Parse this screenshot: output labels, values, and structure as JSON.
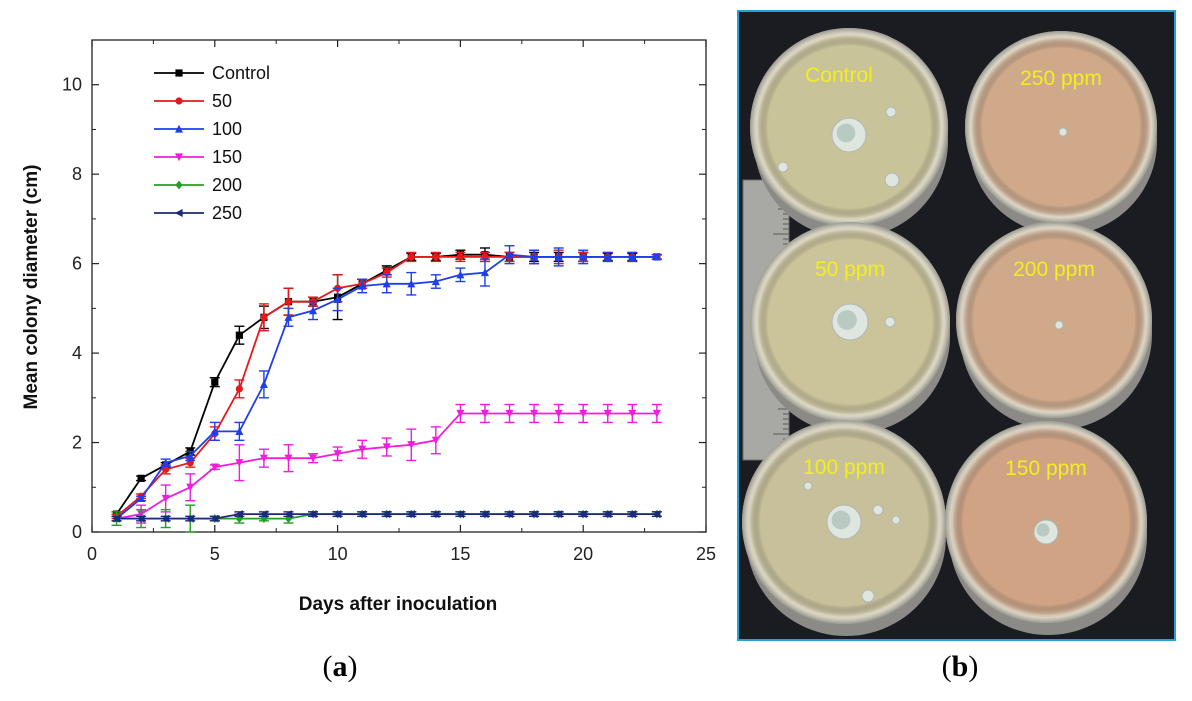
{
  "chart_data": {
    "type": "line",
    "title": "",
    "xlabel": "Days after inoculation",
    "ylabel": "Mean colony diameter (cm)",
    "xlim": [
      0,
      25
    ],
    "ylim": [
      0,
      11
    ],
    "xticks": [
      0,
      5,
      10,
      15,
      20,
      25
    ],
    "yticks": [
      0,
      2,
      4,
      6,
      8,
      10
    ],
    "grid": false,
    "legend_position": "top-left",
    "x": [
      1,
      2,
      3,
      4,
      5,
      6,
      7,
      8,
      9,
      10,
      11,
      12,
      13,
      14,
      15,
      16,
      17,
      18,
      19,
      20,
      21,
      22,
      23
    ],
    "series": [
      {
        "name": "Control",
        "color": "#000000",
        "marker": "square",
        "values": [
          0.4,
          1.2,
          1.5,
          1.8,
          3.35,
          4.4,
          4.8,
          5.15,
          5.15,
          5.25,
          5.55,
          5.85,
          6.15,
          6.15,
          6.2,
          6.2,
          6.15,
          6.15,
          6.15,
          6.15,
          6.15,
          6.15,
          6.15
        ],
        "errors": [
          0.05,
          0.05,
          0.05,
          0.08,
          0.1,
          0.2,
          0.25,
          0.3,
          0.1,
          0.5,
          0.1,
          0.1,
          0.08,
          0.08,
          0.1,
          0.15,
          0.1,
          0.1,
          0.1,
          0.1,
          0.08,
          0.08,
          0.05
        ]
      },
      {
        "name": "50",
        "color": "#e41a1c",
        "marker": "circle",
        "values": [
          0.35,
          0.8,
          1.4,
          1.55,
          2.2,
          3.2,
          4.8,
          5.15,
          5.15,
          5.45,
          5.55,
          5.8,
          6.15,
          6.15,
          6.15,
          6.15,
          6.15,
          6.15,
          6.15,
          6.15,
          6.15,
          6.15,
          6.15
        ],
        "errors": [
          0.05,
          0.05,
          0.1,
          0.1,
          0.15,
          0.2,
          0.3,
          0.3,
          0.1,
          0.3,
          0.1,
          0.1,
          0.1,
          0.1,
          0.1,
          0.1,
          0.1,
          0.15,
          0.15,
          0.1,
          0.1,
          0.1,
          0.05
        ]
      },
      {
        "name": "100",
        "color": "#1f3fe8",
        "marker": "triangle-up",
        "values": [
          0.3,
          0.75,
          1.55,
          1.7,
          2.25,
          2.25,
          3.3,
          4.8,
          4.95,
          5.2,
          5.5,
          5.55,
          5.55,
          5.6,
          5.75,
          5.8,
          6.2,
          6.15,
          6.15,
          6.15,
          6.15,
          6.15,
          6.15
        ],
        "errors": [
          0.05,
          0.05,
          0.08,
          0.1,
          0.2,
          0.2,
          0.3,
          0.2,
          0.2,
          0.25,
          0.15,
          0.2,
          0.25,
          0.15,
          0.15,
          0.3,
          0.2,
          0.15,
          0.2,
          0.15,
          0.1,
          0.1,
          0.05
        ]
      },
      {
        "name": "150",
        "color": "#f01de0",
        "marker": "triangle-down",
        "values": [
          0.3,
          0.4,
          0.75,
          1.0,
          1.45,
          1.55,
          1.65,
          1.65,
          1.65,
          1.75,
          1.85,
          1.9,
          1.95,
          2.05,
          2.65,
          2.65,
          2.65,
          2.65,
          2.65,
          2.65,
          2.65,
          2.65,
          2.65
        ],
        "errors": [
          0.05,
          0.2,
          0.3,
          0.3,
          0.05,
          0.4,
          0.2,
          0.3,
          0.1,
          0.15,
          0.2,
          0.2,
          0.35,
          0.3,
          0.2,
          0.2,
          0.2,
          0.2,
          0.2,
          0.2,
          0.2,
          0.2,
          0.2
        ]
      },
      {
        "name": "200",
        "color": "#23a023",
        "marker": "diamond",
        "values": [
          0.3,
          0.3,
          0.3,
          0.3,
          0.3,
          0.3,
          0.3,
          0.3,
          0.4,
          0.4,
          0.4,
          0.4,
          0.4,
          0.4,
          0.4,
          0.4,
          0.4,
          0.4,
          0.4,
          0.4,
          0.4,
          0.4,
          0.4
        ],
        "errors": [
          0.15,
          0.2,
          0.2,
          0.3,
          0.05,
          0.1,
          0.05,
          0.1,
          0.05,
          0.05,
          0.05,
          0.05,
          0.05,
          0.05,
          0.05,
          0.05,
          0.05,
          0.05,
          0.05,
          0.05,
          0.05,
          0.05,
          0.05
        ]
      },
      {
        "name": "250",
        "color": "#1c2a78",
        "marker": "triangle-left",
        "values": [
          0.3,
          0.3,
          0.3,
          0.3,
          0.3,
          0.4,
          0.4,
          0.4,
          0.4,
          0.4,
          0.4,
          0.4,
          0.4,
          0.4,
          0.4,
          0.4,
          0.4,
          0.4,
          0.4,
          0.4,
          0.4,
          0.4,
          0.4
        ],
        "errors": [
          0.05,
          0.05,
          0.05,
          0.05,
          0.05,
          0.05,
          0.05,
          0.05,
          0.05,
          0.05,
          0.05,
          0.05,
          0.05,
          0.05,
          0.05,
          0.05,
          0.05,
          0.05,
          0.05,
          0.05,
          0.05,
          0.05,
          0.05
        ]
      }
    ]
  },
  "panels": {
    "a_paren_open": "(",
    "a_letter": "a",
    "a_paren_close": ")",
    "b_paren_open": "(",
    "b_letter": "b",
    "b_paren_close": ")"
  },
  "photo": {
    "border_color": "#2a9fd6",
    "label_color": "#f2ef1c",
    "plates": [
      {
        "label": "Control",
        "tint": "#c9c39a"
      },
      {
        "label": "250 ppm",
        "tint": "#cfa98a"
      },
      {
        "label": "50 ppm",
        "tint": "#cbc49b"
      },
      {
        "label": "200 ppm",
        "tint": "#d0a98a"
      },
      {
        "label": "100 ppm",
        "tint": "#c7c09a"
      },
      {
        "label": "150 ppm",
        "tint": "#cfa384"
      }
    ]
  }
}
